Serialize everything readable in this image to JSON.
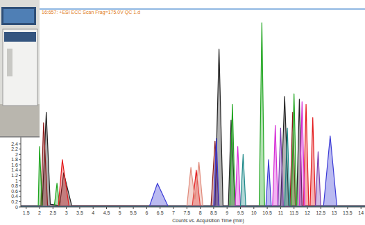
{
  "chart_data": {
    "type": "line",
    "title": "16:657: +ESI ECC Scan Frag=175.0V QC 1.d",
    "x_label": "Counts vs. Acquisition Time (min)",
    "xlim": [
      1.3,
      14.15
    ],
    "ylim": [
      0,
      7.5
    ],
    "xticks": [
      1.5,
      2,
      2.5,
      3,
      3.5,
      4,
      4.5,
      5,
      5.5,
      6,
      6.5,
      7,
      7.5,
      8,
      8.5,
      9,
      9.5,
      10,
      10.5,
      11,
      11.5,
      12,
      12.5,
      13,
      13.5,
      14
    ],
    "yticks": [
      0,
      0.2,
      0.4,
      0.6,
      0.8,
      1,
      1.2,
      1.4,
      1.6,
      1.8,
      2,
      2.2,
      2.4
    ],
    "series": [
      {
        "color": "#222222",
        "x": [
          1.3,
          2.1,
          2.25,
          2.4,
          2.75,
          2.9,
          3.2,
          8.55,
          8.7,
          8.85,
          9.05,
          9.15,
          9.3,
          11.0,
          11.15,
          11.3,
          11.6,
          11.7,
          11.8,
          14.15
        ],
        "values": [
          0.05,
          0.05,
          3.6,
          0.1,
          0.05,
          1.3,
          0.05,
          0.05,
          6.0,
          0.05,
          0.05,
          3.3,
          0.05,
          0.05,
          4.2,
          0.05,
          0.05,
          4.1,
          0.05,
          0.05
        ]
      },
      {
        "color": "#8b1a1a",
        "x": [
          1.3,
          2.05,
          2.15,
          2.3,
          8.4,
          8.55,
          8.7,
          11.35,
          11.45,
          11.55,
          14.15
        ],
        "values": [
          0.03,
          0.03,
          3.2,
          0.05,
          0.03,
          2.5,
          0.03,
          0.03,
          3.6,
          0.03,
          0.03
        ]
      },
      {
        "color": "#1fa51f",
        "x": [
          1.3,
          1.95,
          2.0,
          2.1,
          2.55,
          2.65,
          2.75,
          9.1,
          9.2,
          9.3,
          10.2,
          10.3,
          10.4,
          11.4,
          11.5,
          11.6,
          14.15
        ],
        "values": [
          0.03,
          0.03,
          2.3,
          0.03,
          0.03,
          0.9,
          0.03,
          0.03,
          3.9,
          0.03,
          0.03,
          7.0,
          0.03,
          0.03,
          4.3,
          0.03,
          0.03
        ]
      },
      {
        "color": "#e31a1c",
        "x": [
          1.3,
          2.7,
          2.85,
          3.1,
          7.7,
          7.85,
          8.0,
          11.85,
          11.95,
          12.05,
          12.1,
          12.2,
          12.3,
          14.15
        ],
        "values": [
          0.02,
          0.02,
          1.8,
          0.02,
          0.02,
          1.4,
          0.02,
          0.02,
          3.9,
          0.02,
          0.02,
          3.4,
          0.02,
          0.02
        ]
      },
      {
        "color": "#3a3ad6",
        "x": [
          1.3,
          6.1,
          6.4,
          6.8,
          8.5,
          8.6,
          8.7,
          10.45,
          10.55,
          10.65,
          12.6,
          12.85,
          13.1,
          14.15
        ],
        "values": [
          0.02,
          0.02,
          0.9,
          0.02,
          0.02,
          2.6,
          0.02,
          0.02,
          1.8,
          0.02,
          0.02,
          2.7,
          0.02,
          0.02
        ]
      },
      {
        "color": "#d62ad6",
        "x": [
          1.3,
          9.3,
          9.4,
          9.5,
          10.7,
          10.8,
          10.9,
          11.7,
          11.8,
          11.9,
          14.15
        ],
        "values": [
          0.02,
          0.02,
          2.3,
          0.02,
          0.02,
          3.1,
          0.02,
          0.02,
          4.0,
          0.02,
          0.02
        ]
      },
      {
        "color": "#e08a7a",
        "x": [
          1.3,
          7.5,
          7.65,
          7.8,
          7.95,
          8.1,
          14.15
        ],
        "values": [
          0.02,
          0.02,
          1.5,
          0.3,
          1.7,
          0.02,
          0.02
        ]
      },
      {
        "color": "#7b3fb0",
        "x": [
          1.3,
          10.9,
          11.0,
          11.1,
          12.3,
          12.4,
          12.5,
          14.15
        ],
        "values": [
          0.02,
          0.02,
          3.0,
          0.02,
          0.02,
          2.1,
          0.02,
          0.02
        ]
      },
      {
        "color": "#1f8a8a",
        "x": [
          1.3,
          9.5,
          9.6,
          9.7,
          11.15,
          11.25,
          11.35,
          14.15
        ],
        "values": [
          0.02,
          0.02,
          2.0,
          0.02,
          0.02,
          3.0,
          0.02,
          0.02
        ]
      }
    ]
  }
}
